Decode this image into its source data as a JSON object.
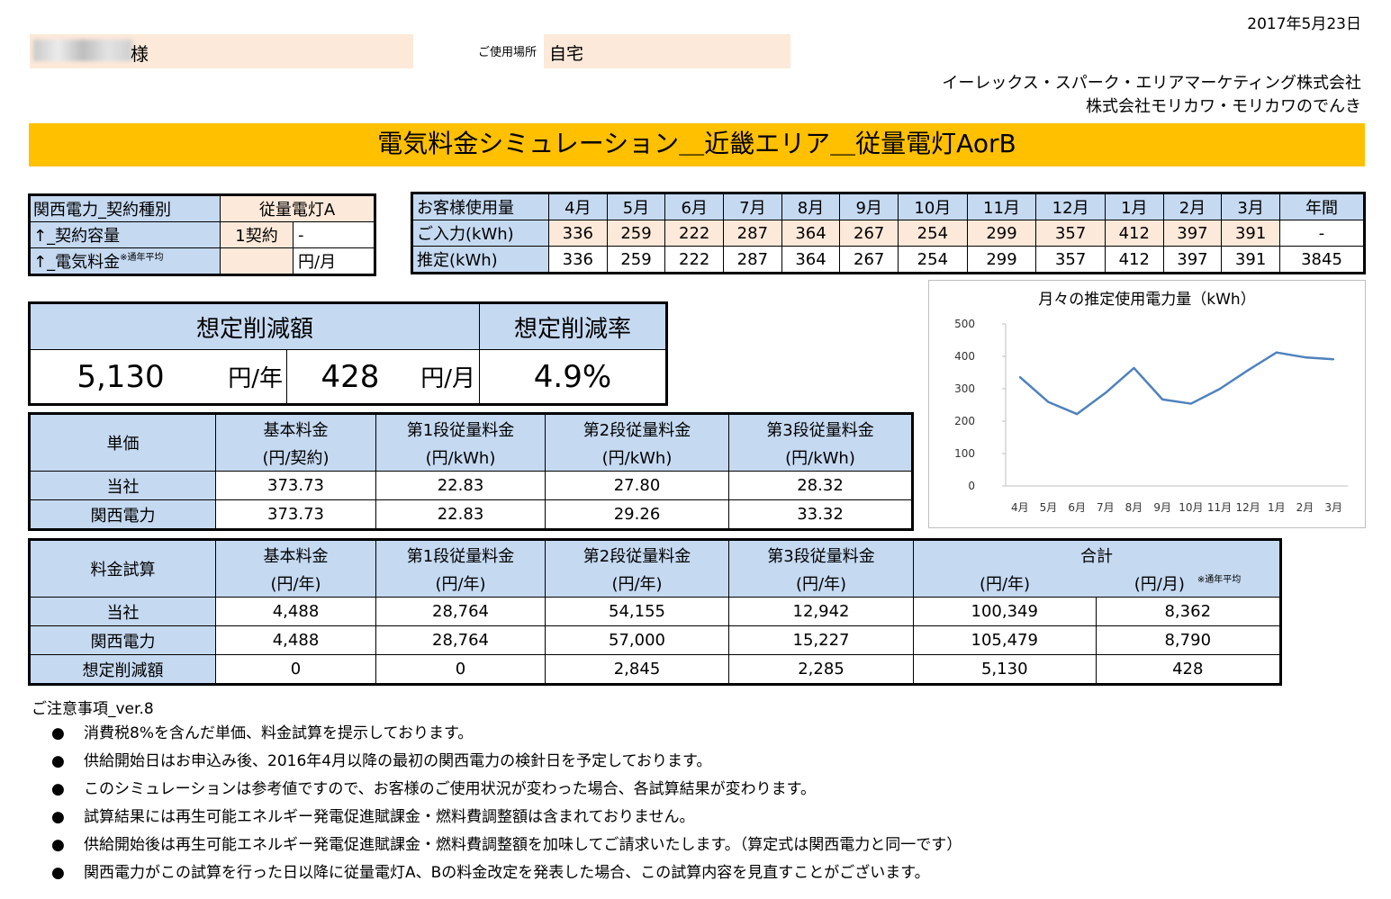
{
  "date": "2017年5月23日",
  "customer": {
    "suffix": "様"
  },
  "place": {
    "label": "ご使用場所",
    "value": "自宅"
  },
  "company": {
    "line1": "イーレックス・スパーク・エリアマーケティング株式会社",
    "line2": "株式会社モリカワ・モリカワのでんき"
  },
  "title": "電気料金シミュレーション＿近畿エリア＿従量電灯AorB",
  "contract": {
    "rows": [
      {
        "label": "関西電力_契約種別",
        "value": "従量電灯A",
        "unit": ""
      },
      {
        "label": "↑_契約容量",
        "value": "1契約",
        "unit": "-"
      },
      {
        "label": "↑_電気料金",
        "note": "※通年平均",
        "value": "",
        "unit": "円/月"
      }
    ]
  },
  "usage": {
    "header_label": "お客様使用量",
    "months": [
      "4月",
      "5月",
      "6月",
      "7月",
      "8月",
      "9月",
      "10月",
      "11月",
      "12月",
      "1月",
      "2月",
      "3月",
      "年間"
    ],
    "input_label": "ご入力(kWh)",
    "input": [
      "336",
      "259",
      "222",
      "287",
      "364",
      "267",
      "254",
      "299",
      "357",
      "412",
      "397",
      "391",
      "-"
    ],
    "est_label": "推定(kWh)",
    "est": [
      "336",
      "259",
      "222",
      "287",
      "364",
      "267",
      "254",
      "299",
      "357",
      "412",
      "397",
      "391",
      "3845"
    ]
  },
  "savings": {
    "amount_label": "想定削減額",
    "rate_label": "想定削減率",
    "year_value": "5,130",
    "year_unit": "円/年",
    "month_value": "428",
    "month_unit": "円/月",
    "rate_value": "4.9%"
  },
  "unit_price": {
    "corner": "単価",
    "headers": [
      [
        "基本料金",
        "(円/契約)"
      ],
      [
        "第1段従量料金",
        "(円/kWh)"
      ],
      [
        "第2段従量料金",
        "(円/kWh)"
      ],
      [
        "第3段従量料金",
        "(円/kWh)"
      ]
    ],
    "rows": [
      {
        "label": "当社",
        "values": [
          "373.73",
          "22.83",
          "27.80",
          "28.32"
        ]
      },
      {
        "label": "関西電力",
        "values": [
          "373.73",
          "22.83",
          "29.26",
          "33.32"
        ]
      }
    ]
  },
  "calc": {
    "corner": "料金試算",
    "headers": [
      [
        "基本料金",
        "(円/年)"
      ],
      [
        "第1段従量料金",
        "(円/年)"
      ],
      [
        "第2段従量料金",
        "(円/年)"
      ],
      [
        "第3段従量料金",
        "(円/年)"
      ]
    ],
    "total_label": "合計",
    "total_year_unit": "(円/年)",
    "total_month_unit": "(円/月)",
    "total_month_note": "※通年平均",
    "rows": [
      {
        "label": "当社",
        "values": [
          "4,488",
          "28,764",
          "54,155",
          "12,942",
          "100,349",
          "8,362"
        ]
      },
      {
        "label": "関西電力",
        "values": [
          "4,488",
          "28,764",
          "57,000",
          "15,227",
          "105,479",
          "8,790"
        ]
      },
      {
        "label": "想定削減額",
        "values": [
          "0",
          "0",
          "2,845",
          "2,285",
          "5,130",
          "428"
        ]
      }
    ]
  },
  "notes": {
    "title": "ご注意事項_ver.8",
    "bullet": "●",
    "items": [
      "消費税8%を含んだ単価、料金試算を提示しております。",
      "供給開始日はお申込み後、2016年4月以降の最初の関西電力の検針日を予定しております。",
      "このシミュレーションは参考値ですので、お客様のご使用状況が変わった場合、各試算結果が変わります。",
      "試算結果には再生可能エネルギー発電促進賦課金・燃料費調整額は含まれておりません。",
      "供給開始後は再生可能エネルギー発電促進賦課金・燃料費調整額を加味してご請求いたします。（算定式は関西電力と同一です）",
      "関西電力がこの試算を行った日以降に従量電灯A、Bの料金改定を発表した場合、この試算内容を見直すことがございます。"
    ]
  },
  "chart_data": {
    "type": "line",
    "title": "月々の推定使用電力量（kWh）",
    "categories": [
      "4月",
      "5月",
      "6月",
      "7月",
      "8月",
      "9月",
      "10月",
      "11月",
      "12月",
      "1月",
      "2月",
      "3月"
    ],
    "values": [
      336,
      259,
      222,
      287,
      364,
      267,
      254,
      299,
      357,
      412,
      397,
      391
    ],
    "yticks": [
      "0",
      "100",
      "200",
      "300",
      "400",
      "500"
    ],
    "ylim": [
      0,
      500
    ],
    "color": "#4f81bd",
    "grid": false,
    "legend": "none"
  }
}
